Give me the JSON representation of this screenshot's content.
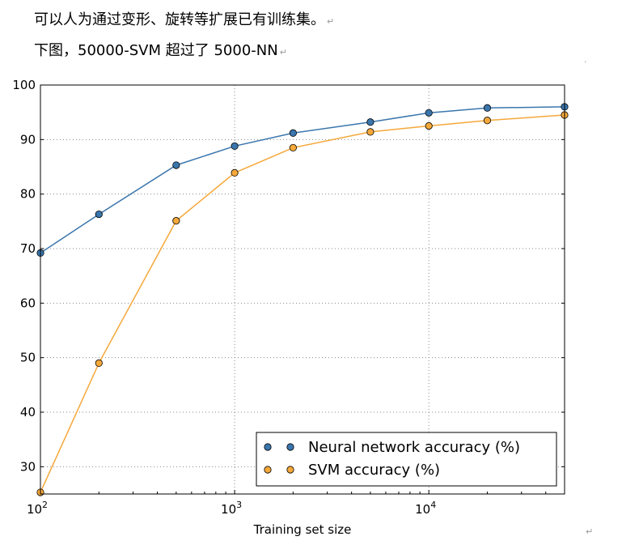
{
  "document": {
    "line1": "可以人为通过变形、旋转等扩展已有训练集。",
    "line2": "下图，50000-SVM  超过了 5000-NN",
    "para_mark": "↵"
  },
  "chart_data": {
    "type": "line",
    "title": "",
    "xlabel": "Training set size",
    "ylabel": "",
    "xscale": "log",
    "xlim": [
      100,
      50000
    ],
    "ylim": [
      25,
      100
    ],
    "yticks": [
      30,
      40,
      50,
      60,
      70,
      80,
      90,
      100
    ],
    "xticks": [
      {
        "value": 100,
        "base": "10",
        "exp": "2"
      },
      {
        "value": 1000,
        "base": "10",
        "exp": "3"
      },
      {
        "value": 10000,
        "base": "10",
        "exp": "4"
      }
    ],
    "grid": true,
    "legend_position": "bottom-right",
    "x": [
      100,
      200,
      500,
      1000,
      2000,
      5000,
      10000,
      20000,
      50000
    ],
    "series": [
      {
        "name": "Neural network accuracy (%)",
        "color": "#3a76ad",
        "values": [
          69.2,
          76.3,
          85.3,
          88.8,
          91.2,
          93.2,
          94.9,
          95.8,
          96.0
        ]
      },
      {
        "name": "SVM accuracy (%)",
        "color": "#f5a83a",
        "values": [
          25.3,
          49.0,
          75.1,
          83.9,
          88.5,
          91.4,
          92.5,
          93.5,
          94.5
        ]
      }
    ]
  }
}
